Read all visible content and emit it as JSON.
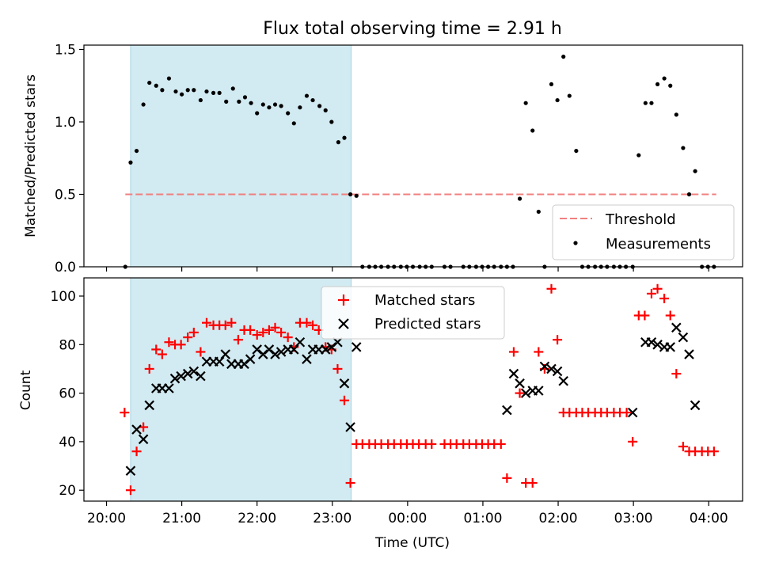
{
  "chart_data": [
    {
      "type": "scatter",
      "title": "Flux total observing time = 2.91 h",
      "ylabel": "Matched/Predicted stars",
      "xlabel": "",
      "ylim": [
        0,
        1.53
      ],
      "yticks": [
        "0.0",
        "0.5",
        "1.0",
        "1.5"
      ],
      "shaded_span_hours": [
        20.32,
        23.25
      ],
      "threshold": {
        "name": "Threshold",
        "value": 0.5,
        "x_range_hours": [
          20.25,
          24.1
        ],
        "x_range_hours_b": [
          24.1,
          28.1
        ]
      },
      "legend_position": "lower right",
      "series": [
        {
          "name": "Measurements",
          "hours": [
            20.25,
            20.32,
            20.4,
            20.49,
            20.57,
            20.66,
            20.74,
            20.83,
            20.92,
            21.0,
            21.08,
            21.16,
            21.25,
            21.33,
            21.42,
            21.5,
            21.59,
            21.68,
            21.76,
            21.84,
            21.92,
            22.0,
            22.08,
            22.16,
            22.24,
            22.32,
            22.41,
            22.49,
            22.57,
            22.66,
            22.74,
            22.83,
            22.91,
            22.99,
            23.08,
            23.16,
            23.24,
            23.32,
            23.4,
            23.49,
            23.57,
            23.65,
            23.74,
            23.82,
            23.91,
            23.99,
            24.07,
            24.16,
            24.24,
            24.32,
            24.49,
            24.57,
            24.74,
            24.82,
            24.91,
            24.99,
            25.07,
            25.15,
            25.24,
            25.32,
            25.4,
            25.49,
            25.57,
            25.66,
            25.74,
            25.82,
            25.91,
            25.99,
            26.07,
            26.15,
            26.24,
            26.32,
            26.4,
            26.49,
            26.57,
            26.65,
            26.74,
            26.82,
            26.9,
            26.99,
            27.07,
            27.16,
            27.24,
            27.32,
            27.41,
            27.49,
            27.57,
            27.66,
            27.74,
            27.82,
            27.91,
            27.99,
            28.07
          ],
          "values": [
            0.0,
            0.72,
            0.8,
            1.12,
            1.27,
            1.25,
            1.22,
            1.3,
            1.21,
            1.19,
            1.22,
            1.22,
            1.15,
            1.21,
            1.2,
            1.2,
            1.14,
            1.23,
            1.14,
            1.17,
            1.13,
            1.06,
            1.12,
            1.1,
            1.12,
            1.11,
            1.06,
            0.99,
            1.1,
            1.18,
            1.15,
            1.11,
            1.08,
            1.0,
            0.86,
            0.89,
            0.5,
            0.49,
            0.0,
            0.0,
            0.0,
            0.0,
            0.0,
            0.0,
            0.0,
            0.0,
            0.0,
            0.0,
            0.0,
            0.0,
            0.0,
            0.0,
            0.0,
            0.0,
            0.0,
            0.0,
            0.0,
            0.0,
            0.0,
            0.0,
            0.0,
            0.47,
            1.13,
            0.94,
            0.38,
            0.0,
            1.26,
            1.15,
            1.45,
            1.18,
            0.8,
            0.0,
            0.0,
            0.0,
            0.0,
            0.0,
            0.0,
            0.0,
            0.0,
            0.0,
            0.77,
            1.13,
            1.13,
            1.26,
            1.3,
            1.25,
            1.05,
            0.82,
            0.5,
            0.66,
            0.0,
            0.0,
            0.0
          ]
        }
      ]
    },
    {
      "type": "scatter",
      "title": "",
      "xlabel": "Time (UTC)",
      "ylabel": "Count",
      "ylim": [
        15.5,
        107.5
      ],
      "yticks": [
        "20",
        "40",
        "60",
        "80",
        "100"
      ],
      "xlim_hours": [
        19.7,
        28.45
      ],
      "xticks": [
        "20:00",
        "21:00",
        "22:00",
        "23:00",
        "00:00",
        "01:00",
        "02:00",
        "03:00",
        "04:00"
      ],
      "xtick_hours": [
        20,
        21,
        22,
        23,
        24,
        25,
        26,
        27,
        28
      ],
      "shaded_span_hours": [
        20.32,
        23.25
      ],
      "legend_position": "upper center",
      "series": [
        {
          "name": "Matched stars",
          "marker": "plus",
          "color": "#ff0000",
          "hours": [
            20.24,
            20.32,
            20.4,
            20.49,
            20.57,
            20.66,
            20.74,
            20.83,
            20.91,
            20.99,
            21.08,
            21.16,
            21.25,
            21.33,
            21.42,
            21.5,
            21.58,
            21.66,
            21.75,
            21.83,
            21.91,
            22.0,
            22.08,
            22.16,
            22.24,
            22.32,
            22.41,
            22.49,
            22.57,
            22.66,
            22.74,
            22.82,
            22.91,
            22.99,
            23.07,
            23.16,
            23.24,
            23.32,
            23.4,
            23.49,
            23.57,
            23.65,
            23.74,
            23.82,
            23.91,
            23.99,
            24.07,
            24.15,
            24.24,
            24.32,
            24.49,
            24.57,
            24.65,
            24.74,
            24.82,
            24.91,
            24.99,
            25.07,
            25.15,
            25.24,
            25.32,
            25.41,
            25.49,
            25.57,
            25.66,
            25.74,
            25.82,
            25.91,
            25.99,
            26.07,
            26.15,
            26.24,
            26.32,
            26.4,
            26.49,
            26.57,
            26.65,
            26.74,
            26.82,
            26.91,
            26.99,
            27.07,
            27.15,
            27.24,
            27.32,
            27.41,
            27.49,
            27.57,
            27.66,
            27.74,
            27.82,
            27.91,
            27.99,
            28.07
          ],
          "values": [
            52,
            20,
            36,
            46,
            70,
            78,
            76,
            81,
            80,
            80,
            83,
            85,
            77,
            89,
            88,
            88,
            88,
            89,
            82,
            86,
            86,
            84,
            85,
            86,
            87,
            85,
            83,
            79,
            89,
            89,
            88,
            86,
            79,
            78,
            70,
            57,
            23,
            39,
            39,
            39,
            39,
            39,
            39,
            39,
            39,
            39,
            39,
            39,
            39,
            39,
            39,
            39,
            39,
            39,
            39,
            39,
            39,
            39,
            39,
            39,
            25,
            77,
            60,
            23,
            23,
            77,
            70,
            103,
            82,
            52,
            52,
            52,
            52,
            52,
            52,
            52,
            52,
            52,
            52,
            52,
            40,
            92,
            92,
            101,
            103,
            99,
            92,
            68,
            38,
            36,
            36,
            36,
            36,
            36
          ]
        },
        {
          "name": "Predicted stars",
          "marker": "x",
          "color": "#000000",
          "hours": [
            20.32,
            20.4,
            20.49,
            20.57,
            20.66,
            20.74,
            20.83,
            20.91,
            20.99,
            21.08,
            21.16,
            21.25,
            21.33,
            21.42,
            21.5,
            21.58,
            21.66,
            21.75,
            21.83,
            21.91,
            22.0,
            22.08,
            22.16,
            22.24,
            22.32,
            22.41,
            22.49,
            22.57,
            22.66,
            22.74,
            22.82,
            22.91,
            22.99,
            23.07,
            23.16,
            23.24,
            23.32,
            25.32,
            25.41,
            25.49,
            25.57,
            25.66,
            25.74,
            25.82,
            25.91,
            25.99,
            26.07,
            26.99,
            27.16,
            27.24,
            27.32,
            27.41,
            27.49,
            27.57,
            27.66,
            27.74,
            27.82
          ],
          "values": [
            28,
            45,
            41,
            55,
            62,
            62,
            62,
            66,
            67,
            68,
            69,
            67,
            73,
            73,
            73,
            76,
            72,
            72,
            72,
            74,
            78,
            76,
            78,
            76,
            77,
            78,
            78,
            81,
            74,
            78,
            78,
            78,
            79,
            81,
            64,
            46,
            79,
            53,
            68,
            64,
            60,
            61,
            61,
            71,
            70,
            69,
            65,
            52,
            81,
            81,
            80,
            79,
            79,
            87,
            83,
            76,
            55
          ]
        }
      ]
    }
  ]
}
